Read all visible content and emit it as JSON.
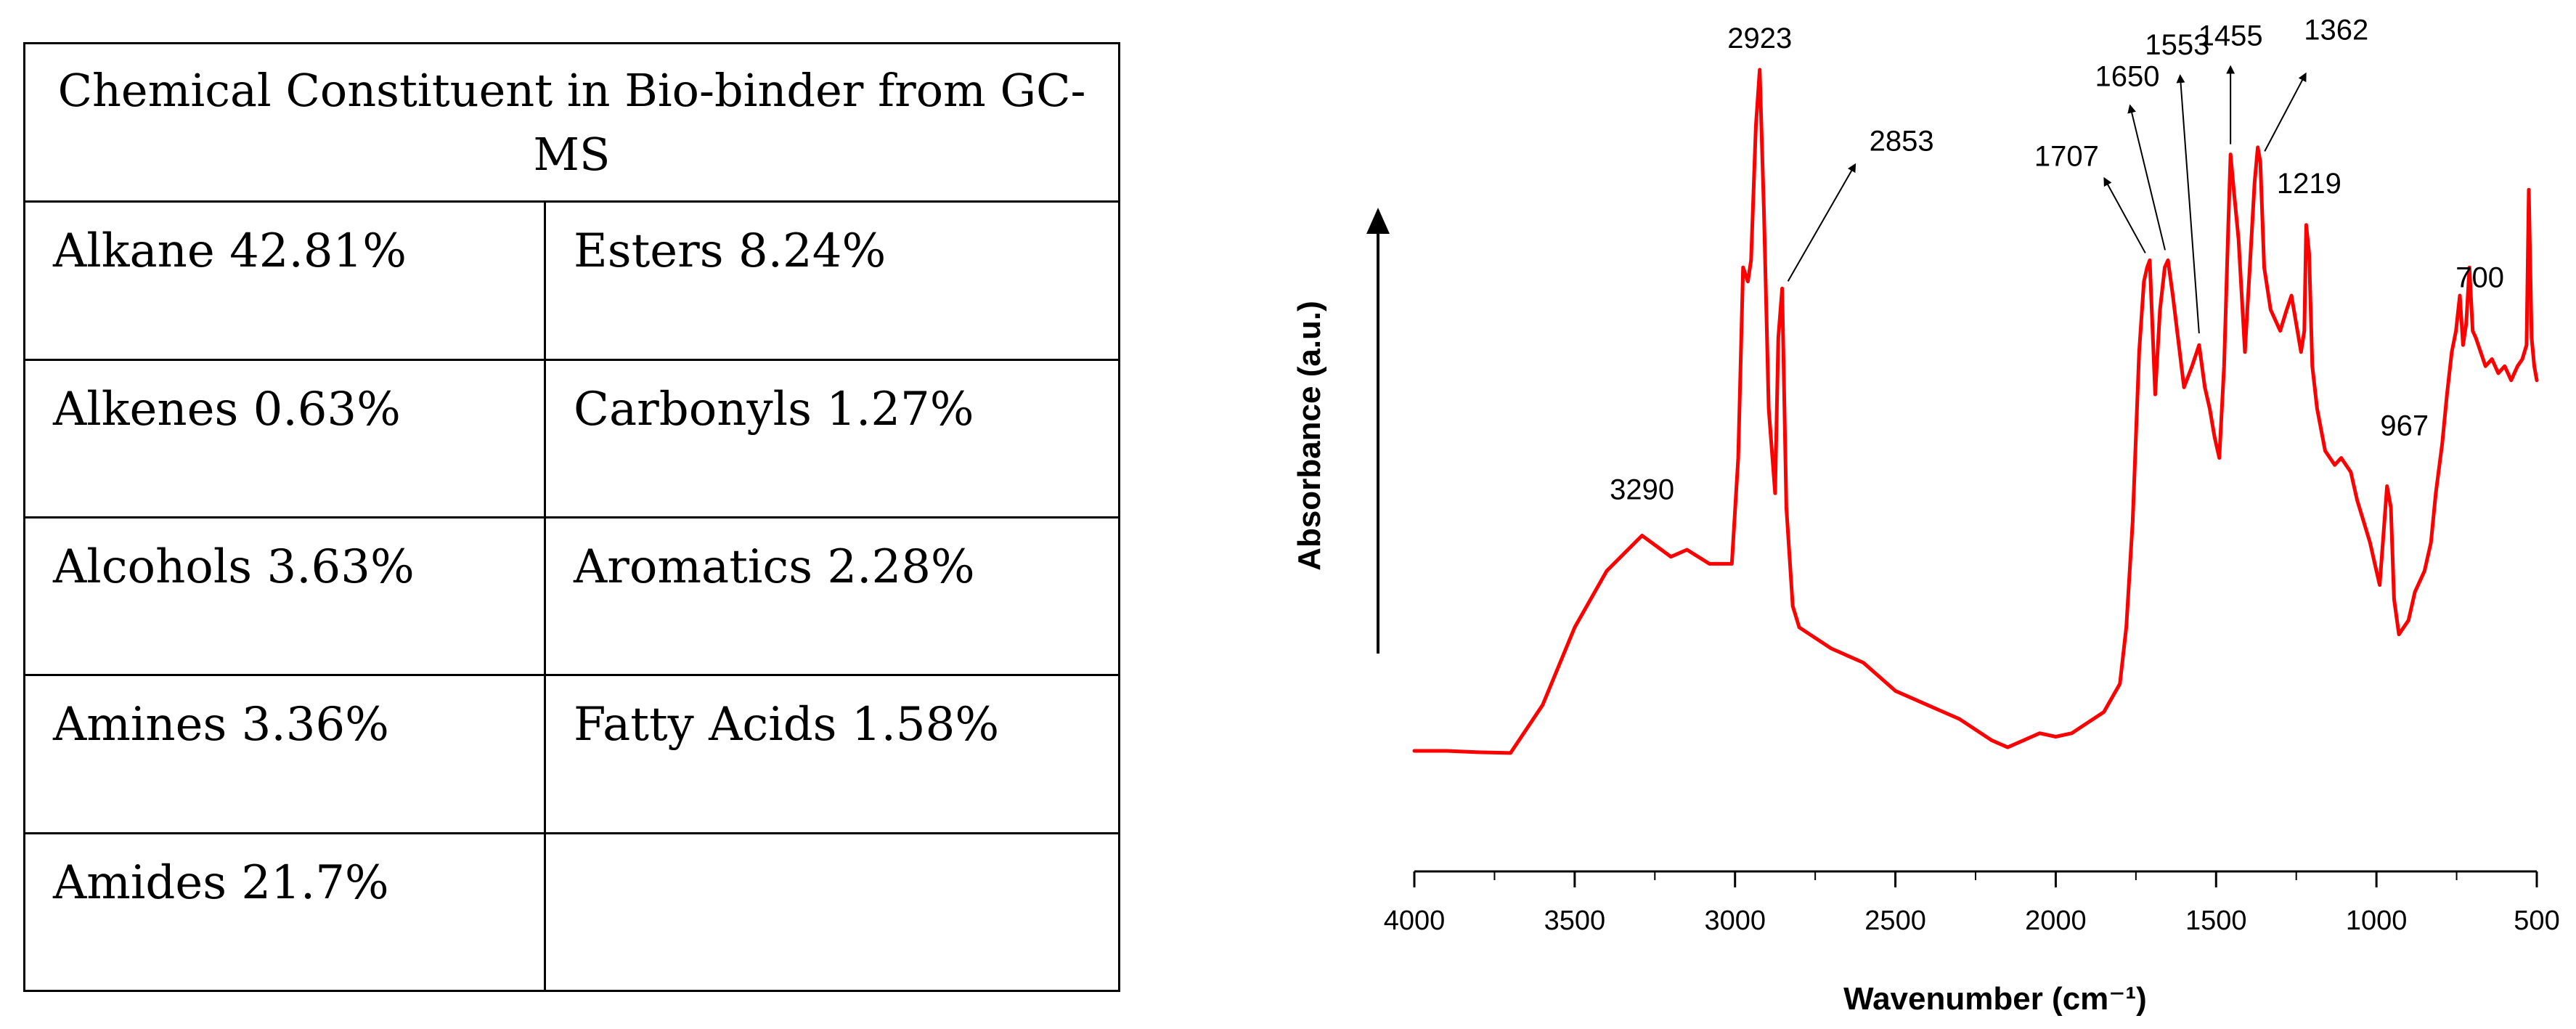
{
  "table": {
    "title": "Chemical Constituent in Bio-binder from GC-MS",
    "rows": [
      [
        "Alkane 42.81%",
        "Esters 8.24%"
      ],
      [
        "Alkenes 0.63%",
        "Carbonyls 1.27%"
      ],
      [
        "Alcohols 3.63%",
        "Aromatics 2.28%"
      ],
      [
        "Amines 3.36%",
        "Fatty Acids 1.58%"
      ],
      [
        "Amides 21.7%",
        ""
      ]
    ]
  },
  "chart_data": {
    "type": "line",
    "title": "",
    "xlabel": "Wavenumber (cm⁻¹)",
    "ylabel": "Absorbance (a.u.)",
    "xlim": [
      4000,
      500
    ],
    "ylim": [
      0,
      100
    ],
    "x_reversed": true,
    "xticks": [
      4000,
      3500,
      3000,
      2500,
      2000,
      1500,
      1000,
      500
    ],
    "yticks": [],
    "grid": false,
    "series": [
      {
        "color": "#ff0000",
        "x": [
          4000,
          3900,
          3800,
          3700,
          3600,
          3500,
          3400,
          3290,
          3200,
          3150,
          3080,
          3010,
          2990,
          2975,
          2960,
          2950,
          2935,
          2923,
          2910,
          2895,
          2875,
          2865,
          2853,
          2840,
          2820,
          2800,
          2700,
          2600,
          2500,
          2400,
          2300,
          2200,
          2150,
          2100,
          2050,
          2000,
          1950,
          1900,
          1850,
          1800,
          1780,
          1760,
          1740,
          1725,
          1715,
          1707,
          1690,
          1675,
          1660,
          1650,
          1635,
          1600,
          1575,
          1553,
          1535,
          1520,
          1505,
          1490,
          1475,
          1462,
          1455,
          1445,
          1430,
          1410,
          1395,
          1380,
          1370,
          1362,
          1350,
          1330,
          1300,
          1280,
          1265,
          1250,
          1235,
          1225,
          1219,
          1210,
          1200,
          1185,
          1160,
          1130,
          1110,
          1080,
          1060,
          1040,
          1020,
          1005,
          990,
          980,
          967,
          955,
          945,
          930,
          900,
          880,
          850,
          830,
          815,
          795,
          780,
          765,
          752,
          740,
          730,
          720,
          710,
          700,
          690,
          675,
          660,
          640,
          620,
          600,
          580,
          560,
          545,
          532,
          525,
          516,
          508,
          500
        ],
        "y": [
          3.5,
          3.5,
          3.3,
          3.2,
          10,
          21,
          29,
          34,
          31,
          32,
          30,
          30,
          45,
          72,
          70,
          73,
          92,
          100,
          80,
          52,
          40,
          62,
          69,
          38,
          24,
          21,
          18,
          16,
          12,
          10,
          8,
          5,
          4,
          5,
          6,
          5.5,
          6,
          7.5,
          9,
          13,
          21,
          36,
          60,
          70,
          72,
          73,
          54,
          66,
          72,
          73,
          68,
          55,
          58,
          61,
          55,
          52,
          48,
          45,
          58,
          78,
          88,
          83,
          76,
          60,
          72,
          84,
          89,
          87,
          72,
          66,
          63,
          66,
          68,
          64,
          60,
          63,
          78,
          74,
          58,
          52,
          46,
          44,
          45,
          43,
          39,
          36,
          33,
          30,
          27,
          33,
          41,
          38,
          25,
          20,
          22,
          26,
          29,
          33,
          40,
          47,
          54,
          60,
          63,
          68,
          61,
          64,
          72,
          63,
          62,
          60,
          58,
          59,
          57,
          58,
          56,
          58,
          59,
          61,
          83,
          62,
          58,
          56
        ]
      }
    ],
    "annotations": [
      {
        "label": "3290",
        "x": 3290,
        "arrow": false
      },
      {
        "label": "2923",
        "x": 2923,
        "arrow": false
      },
      {
        "label": "2853",
        "x": 2853,
        "arrow": true
      },
      {
        "label": "1707",
        "x": 1707,
        "arrow": true
      },
      {
        "label": "1650",
        "x": 1650,
        "arrow": true
      },
      {
        "label": "1553",
        "x": 1553,
        "arrow": true
      },
      {
        "label": "1455",
        "x": 1455,
        "arrow": true
      },
      {
        "label": "1362",
        "x": 1362,
        "arrow": true
      },
      {
        "label": "1219",
        "x": 1219,
        "arrow": false
      },
      {
        "label": "967",
        "x": 967,
        "arrow": false
      },
      {
        "label": "700",
        "x": 700,
        "arrow": false
      }
    ],
    "y_arrow": true
  }
}
